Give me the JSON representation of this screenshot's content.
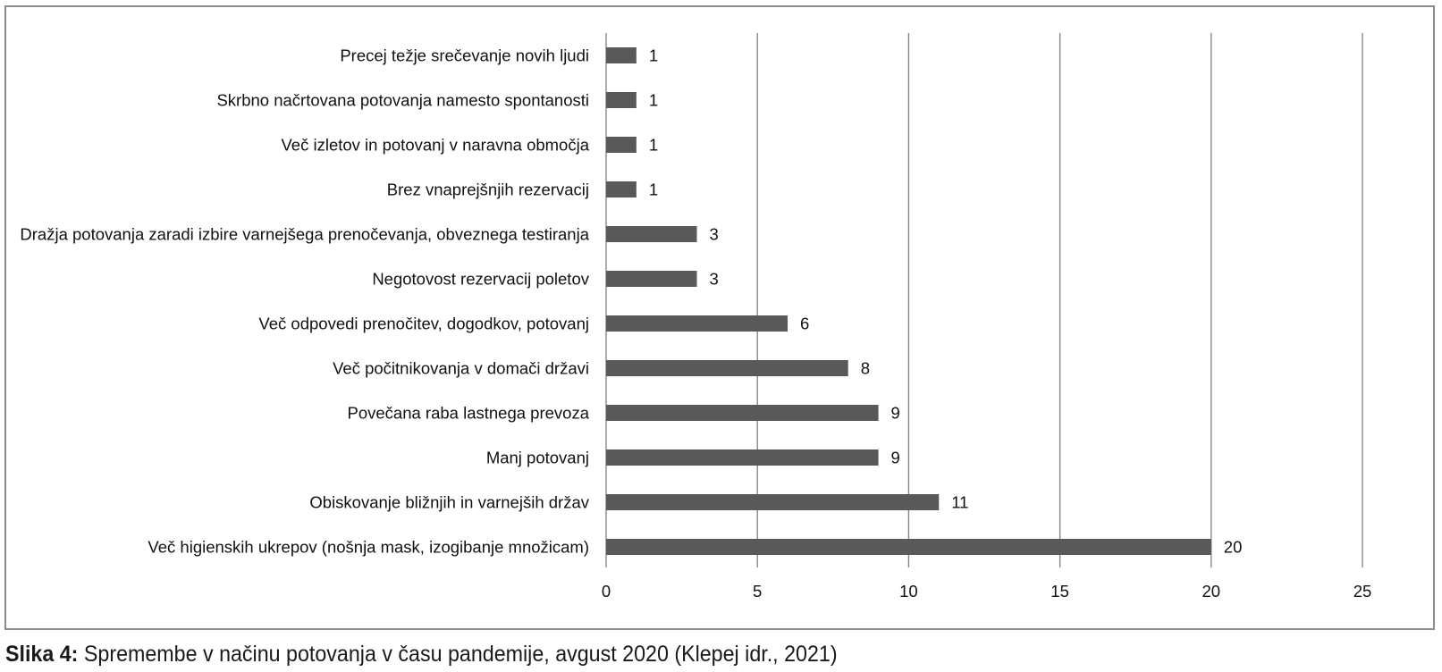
{
  "chart_data": {
    "type": "bar",
    "orientation": "horizontal",
    "categories": [
      "Precej težje srečevanje novih ljudi",
      "Skrbno načrtovana potovanja namesto spontanosti",
      "Več izletov in potovanj v naravna območja",
      "Brez vnaprejšnjih rezervacij",
      "Dražja potovanja zaradi izbire varnejšega prenočevanja, obveznega testiranja",
      "Negotovost rezervacij poletov",
      "Več odpovedi prenočitev, dogodkov, potovanj",
      "Več počitnikovanja v domači državi",
      "Povečana raba lastnega prevoza",
      "Manj potovanj",
      "Obiskovanje bližnjih in varnejših držav",
      "Več higienskih ukrepov (nošnja mask, izogibanje množicam)"
    ],
    "values": [
      1,
      1,
      1,
      1,
      3,
      3,
      6,
      8,
      9,
      9,
      11,
      20
    ],
    "data_labels": [
      "1",
      "1",
      "1",
      "1",
      "3",
      "3",
      "6",
      "8",
      "9",
      "9",
      "11",
      "20"
    ],
    "xlim": [
      0,
      25
    ],
    "x_ticks": [
      0,
      5,
      10,
      15,
      20,
      25
    ],
    "x_tick_labels": [
      "0",
      "5",
      "10",
      "15",
      "20",
      "25"
    ],
    "grid": "vertical",
    "legend": "none",
    "bar_color": "#595959",
    "grid_color": "#7f7f7f",
    "frame_color": "#8c8c8c"
  },
  "caption": {
    "label": "Slika 4:",
    "text": " Spremembe v načinu potovanja v času pandemije, avgust 2020 (Klepej idr., 2021)"
  }
}
